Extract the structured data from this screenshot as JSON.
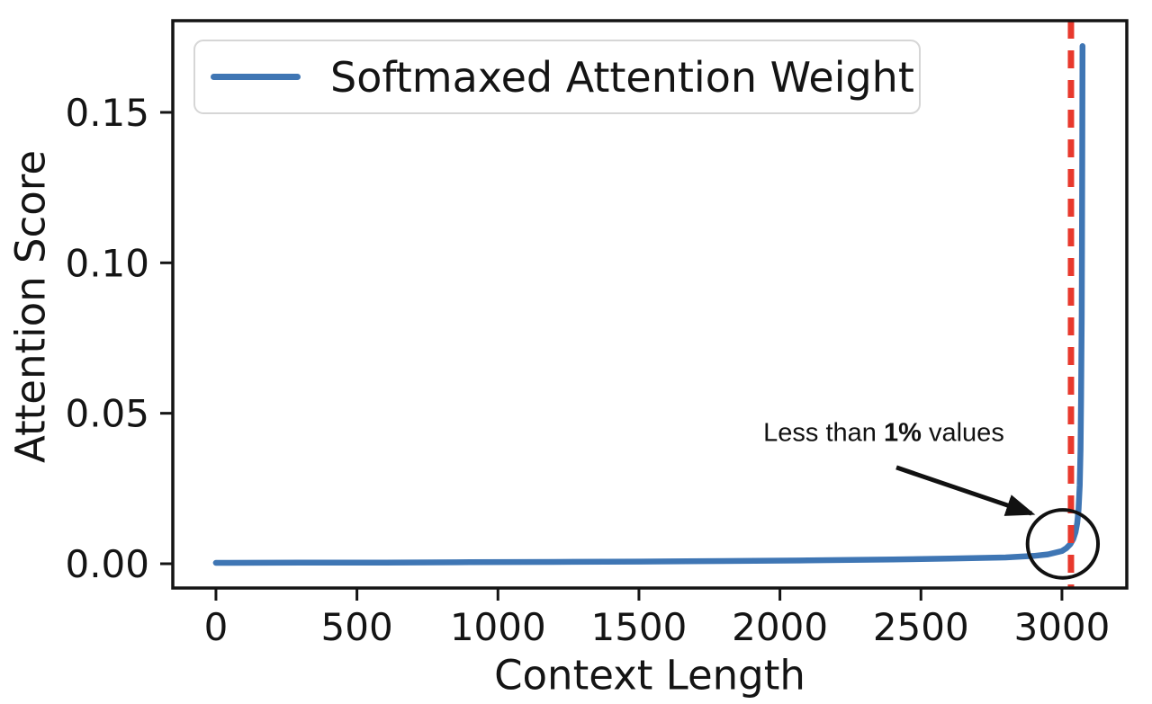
{
  "chart_data": {
    "type": "line",
    "title": "",
    "xlabel": "Context Length",
    "ylabel": "Attention Score",
    "xlim": [
      -153,
      3230
    ],
    "ylim": [
      -0.00807,
      0.18047
    ],
    "xticks": [
      0,
      500,
      1000,
      1500,
      2000,
      2500,
      3000
    ],
    "xtick_labels": [
      "0",
      "500",
      "1000",
      "1500",
      "2000",
      "2500",
      "3000"
    ],
    "yticks": [
      0,
      0.05,
      0.1,
      0.15
    ],
    "ytick_labels": [
      "0.00",
      "0.05",
      "0.10",
      "0.15"
    ],
    "grid": false,
    "axis_color": "#141414",
    "series": [
      {
        "name": "Softmaxed Attention Weight",
        "color": "#3f76b4",
        "max_value": 0.172,
        "points": [
          [
            0,
            0.0003
          ],
          [
            300,
            0.00035
          ],
          [
            600,
            0.0004
          ],
          [
            900,
            0.0005
          ],
          [
            1200,
            0.0006
          ],
          [
            1500,
            0.0007
          ],
          [
            1800,
            0.0009
          ],
          [
            2100,
            0.0011
          ],
          [
            2400,
            0.0014
          ],
          [
            2600,
            0.0017
          ],
          [
            2800,
            0.0021
          ],
          [
            2900,
            0.0026
          ],
          [
            2950,
            0.0031
          ],
          [
            3000,
            0.0042
          ],
          [
            3015,
            0.0051
          ],
          [
            3030,
            0.0065
          ],
          [
            3040,
            0.0082
          ],
          [
            3048,
            0.0105
          ],
          [
            3054,
            0.0135
          ],
          [
            3059,
            0.018
          ],
          [
            3063,
            0.026
          ],
          [
            3066,
            0.038
          ],
          [
            3068,
            0.055
          ],
          [
            3070,
            0.082
          ],
          [
            3071,
            0.105
          ],
          [
            3072,
            0.135
          ],
          [
            3073,
            0.172
          ]
        ]
      }
    ],
    "vline": {
      "x": 3032,
      "color": "#e8392d",
      "style": "dashed"
    },
    "legend": {
      "position": "upper-left",
      "entries": [
        {
          "label": "Softmaxed Attention Weight",
          "color": "#3f76b4"
        }
      ]
    },
    "annotation": {
      "full_text": "Less than 1% values",
      "text_prefix": "Less than ",
      "text_bold": "1%",
      "text_suffix": " values",
      "color": "#111111",
      "arrow_from": [
        2413,
        0.032
      ],
      "arrow_to": [
        2892,
        0.0167
      ],
      "circle": {
        "cx": 3003,
        "cy": 0.0066,
        "rx": 125,
        "ry": 0.0113
      }
    }
  }
}
